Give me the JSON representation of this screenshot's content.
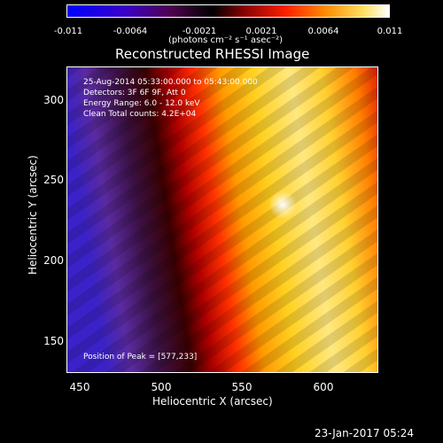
{
  "colorbar": {
    "ticks": [
      "-0.011",
      "-0.0064",
      "-0.0021",
      "0.0021",
      "0.0064",
      "0.011"
    ],
    "units": "(photons cm⁻² s⁻¹ asec⁻²)"
  },
  "title": "Reconstructed RHESSI Image",
  "info": {
    "time": "25-Aug-2014 05:33:00.000 to 05:43:00.000",
    "detectors": "Detectors: 3F 6F 9F, Att 0",
    "energy": "Energy Range: 6.0 - 12.0 keV",
    "clean": "Clean     Total counts: 4.2E+04",
    "peak": "Position of Peak = [577,233]"
  },
  "axes": {
    "ylabel": "Heliocentric Y (arcsec)",
    "xlabel": "Heliocentric X (arcsec)",
    "yticks": [
      "300",
      "250",
      "200",
      "150"
    ],
    "xticks": [
      "450",
      "500",
      "550",
      "600"
    ]
  },
  "footer": "23-Jan-2017 05:24"
}
